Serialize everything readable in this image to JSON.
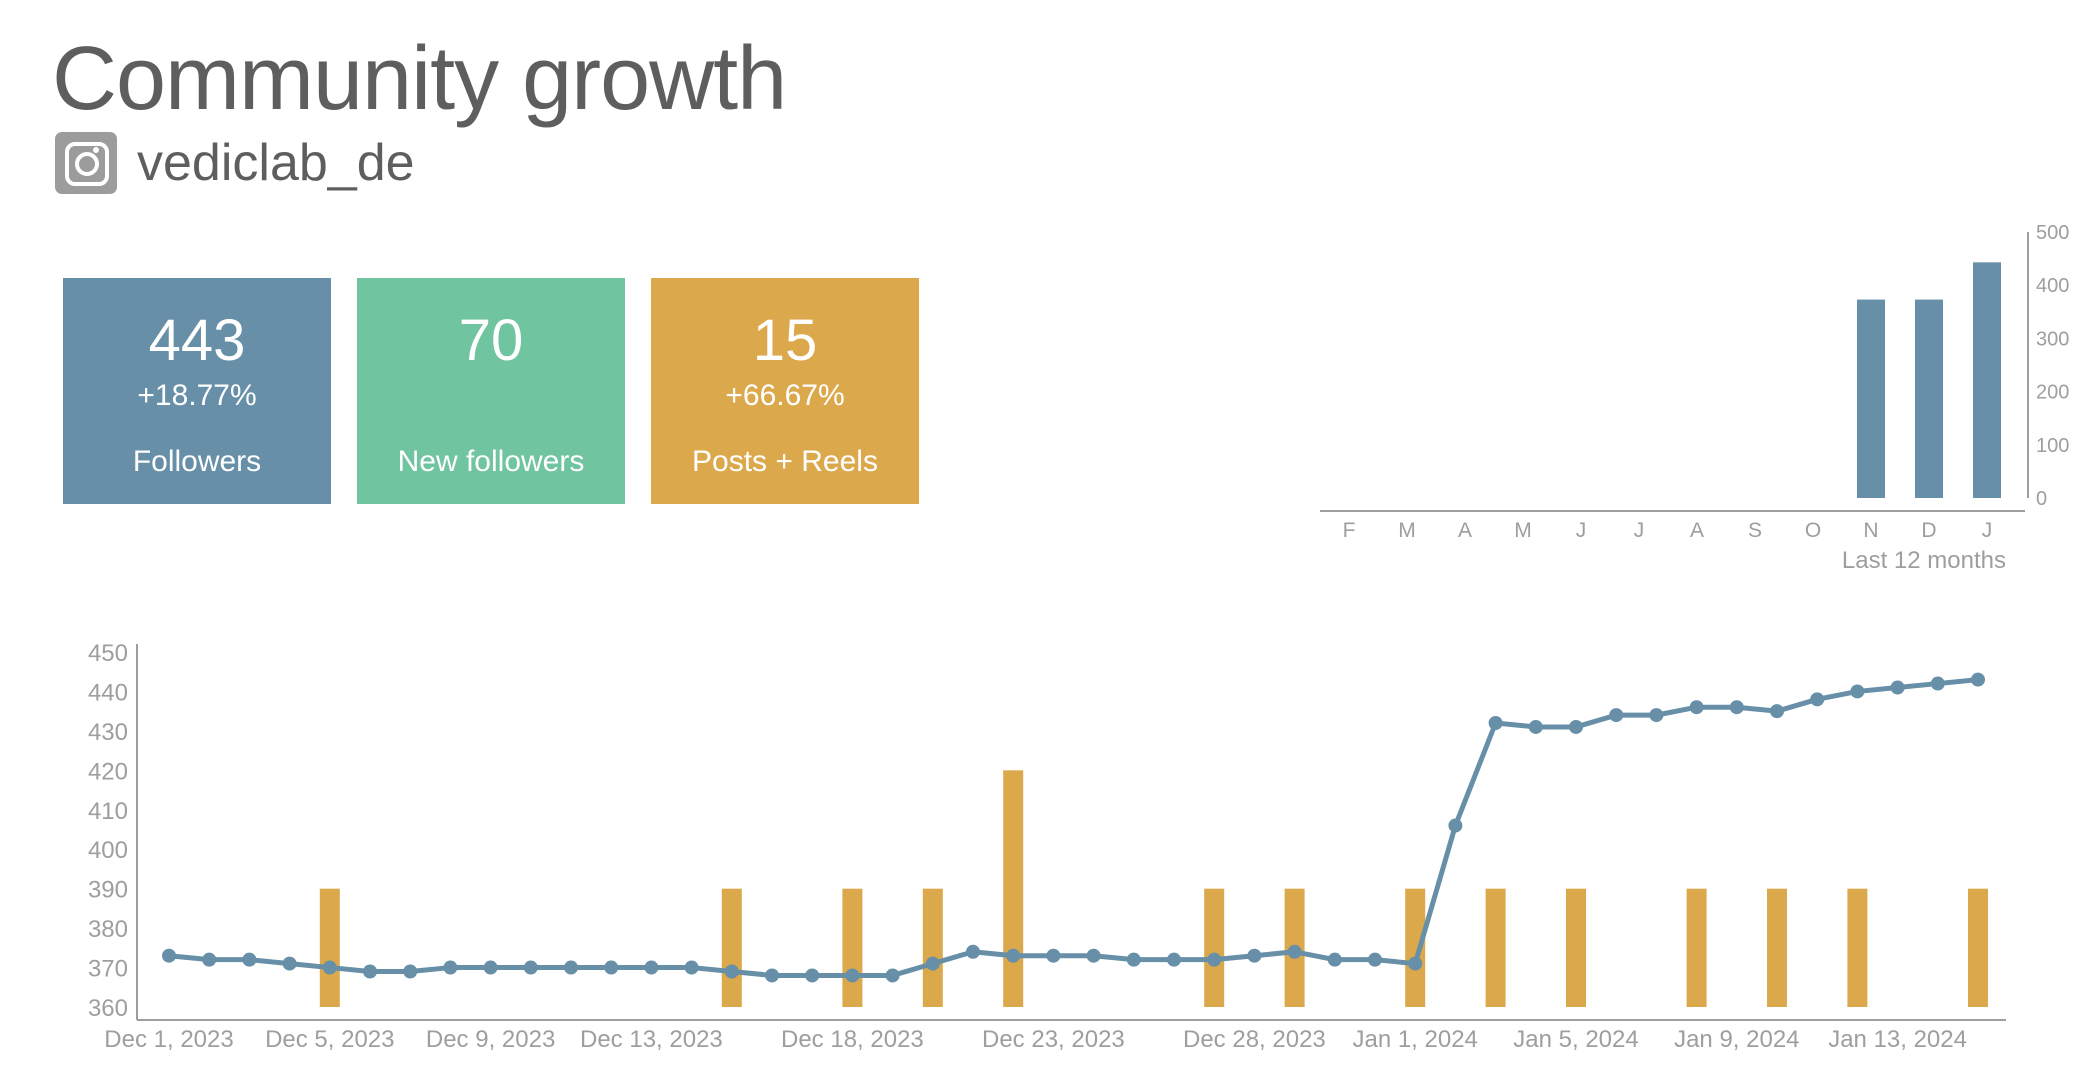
{
  "header": {
    "title": "Community growth",
    "account": "vediclab_de",
    "platform_icon": "instagram-icon"
  },
  "kpis": {
    "followers": {
      "value": "443",
      "change": "+18.77%",
      "label": "Followers"
    },
    "new_followers": {
      "value": "70",
      "change": "",
      "label": "New followers"
    },
    "posts": {
      "value": "15",
      "change": "+66.67%",
      "label": "Posts + Reels"
    }
  },
  "colors": {
    "followers": "#678fa8",
    "new_followers": "#71c4a0",
    "posts": "#dca84c",
    "axis": "#9e9e9e"
  },
  "chart_data": [
    {
      "type": "bar",
      "title": "",
      "xlabel": "Last 12 months",
      "ylabel": "",
      "categories": [
        "F",
        "M",
        "A",
        "M",
        "J",
        "J",
        "A",
        "S",
        "O",
        "N",
        "D",
        "J"
      ],
      "values": [
        0,
        0,
        0,
        0,
        0,
        0,
        0,
        0,
        0,
        373,
        373,
        443
      ],
      "ylim": [
        0,
        500
      ],
      "yticks": [
        0,
        100,
        200,
        300,
        400,
        500
      ],
      "y_axis_side": "right"
    },
    {
      "type": "line+bar",
      "title": "",
      "xlabel": "",
      "ylabel": "",
      "ylim": [
        360,
        450
      ],
      "yticks": [
        360,
        370,
        380,
        390,
        400,
        410,
        420,
        430,
        440,
        450
      ],
      "xtick_labels": [
        {
          "day": 0,
          "label": "Dec 1, 2023"
        },
        {
          "day": 4,
          "label": "Dec 5, 2023"
        },
        {
          "day": 8,
          "label": "Dec 9, 2023"
        },
        {
          "day": 12,
          "label": "Dec 13, 2023"
        },
        {
          "day": 17,
          "label": "Dec 18, 2023"
        },
        {
          "day": 22,
          "label": "Dec 23, 2023"
        },
        {
          "day": 27,
          "label": "Dec 28, 2023"
        },
        {
          "day": 31,
          "label": "Jan 1, 2024"
        },
        {
          "day": 35,
          "label": "Jan 5, 2024"
        },
        {
          "day": 39,
          "label": "Jan 9, 2024"
        },
        {
          "day": 43,
          "label": "Jan 13, 2024"
        }
      ],
      "series": [
        {
          "name": "Followers",
          "kind": "line",
          "values": [
            373,
            372,
            372,
            371,
            370,
            369,
            369,
            370,
            370,
            370,
            370,
            370,
            370,
            370,
            369,
            368,
            368,
            368,
            368,
            371,
            374,
            373,
            373,
            373,
            372,
            372,
            372,
            373,
            374,
            372,
            372,
            371,
            406,
            432,
            431,
            431,
            434,
            434,
            436,
            436,
            435,
            438,
            440,
            441,
            442,
            443
          ]
        },
        {
          "name": "Posts + Reels",
          "kind": "bar",
          "days": [
            4,
            14,
            17,
            19,
            21,
            26,
            28,
            31,
            33,
            35,
            38,
            40,
            42,
            45
          ],
          "values": [
            390,
            390,
            390,
            390,
            420,
            390,
            390,
            390,
            390,
            390,
            390,
            390,
            390,
            390
          ]
        }
      ]
    }
  ]
}
